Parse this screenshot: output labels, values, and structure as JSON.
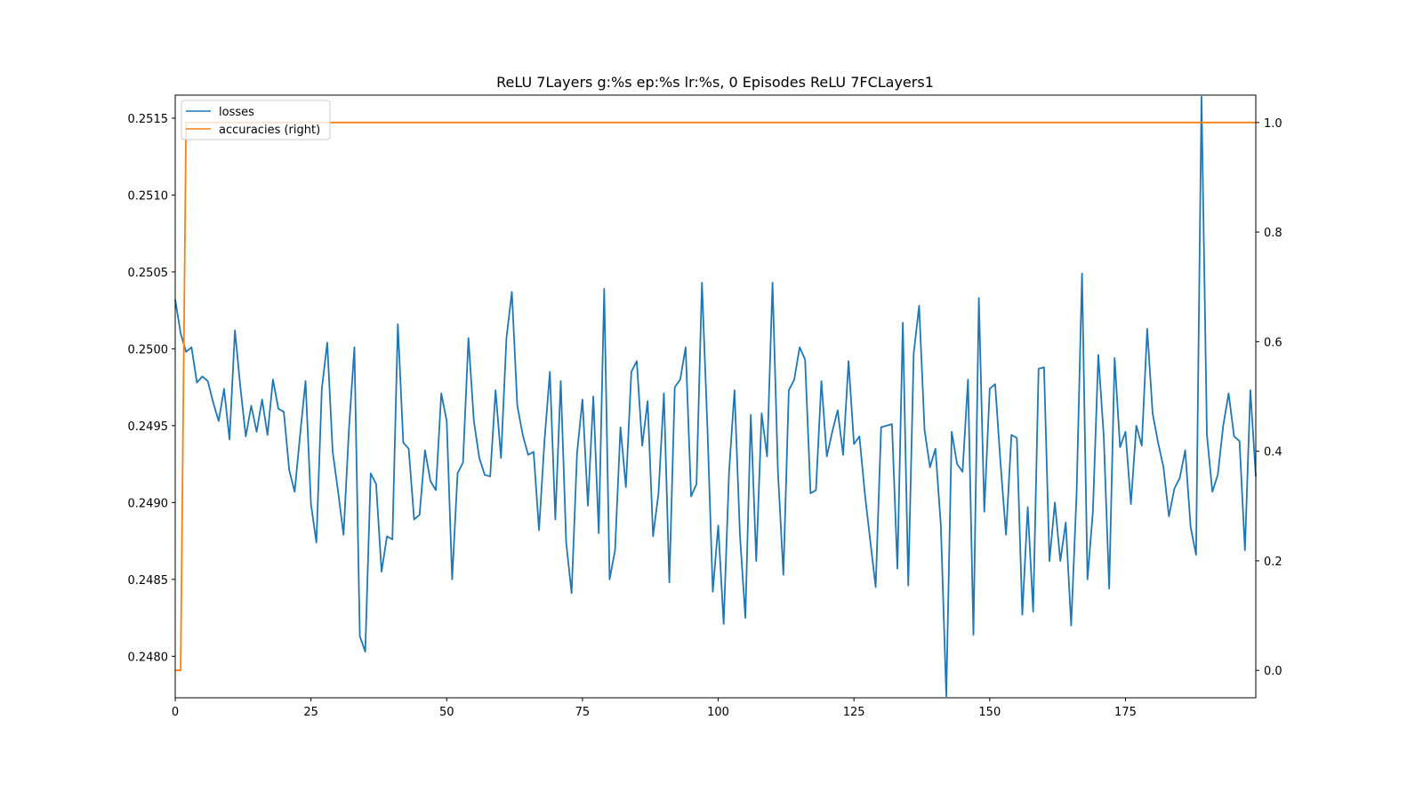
{
  "chart_data": {
    "type": "line",
    "title": "ReLU 7Layers g:%s ep:%s lr:%s, 0 Episodes ReLU 7FCLayers1",
    "xlabel": "",
    "ylabel": "",
    "xlim": [
      0,
      199
    ],
    "ylim_left": [
      0.24773,
      0.25165
    ],
    "ylim_right": [
      -0.05,
      1.05
    ],
    "x_ticks": [
      0,
      25,
      50,
      75,
      100,
      125,
      150,
      175
    ],
    "y_left_ticks": [
      0.248,
      0.2485,
      0.249,
      0.2495,
      0.25,
      0.2505,
      0.251,
      0.2515
    ],
    "y_right_ticks": [
      0.0,
      0.2,
      0.4,
      0.6,
      0.8,
      1.0
    ],
    "grid": false,
    "legend": {
      "position": "top-left",
      "entries": [
        "losses",
        "accuracies (right)"
      ]
    },
    "colors": {
      "losses": "#1f77b4",
      "accuracies": "#ff7f0e"
    },
    "series": [
      {
        "name": "losses",
        "axis": "left",
        "values": [
          0.25032,
          0.2501,
          0.24998,
          0.25001,
          0.24978,
          0.24982,
          0.24979,
          0.24965,
          0.24953,
          0.24974,
          0.24941,
          0.25012,
          0.24975,
          0.24943,
          0.24963,
          0.24946,
          0.24967,
          0.24944,
          0.2498,
          0.24961,
          0.24959,
          0.24921,
          0.24907,
          0.24944,
          0.24979,
          0.24899,
          0.24874,
          0.24974,
          0.25004,
          0.24933,
          0.24907,
          0.24879,
          0.24948,
          0.25001,
          0.24813,
          0.24803,
          0.24919,
          0.24912,
          0.24855,
          0.24878,
          0.24876,
          0.25016,
          0.24939,
          0.24935,
          0.24889,
          0.24892,
          0.24934,
          0.24914,
          0.24908,
          0.24971,
          0.24953,
          0.2485,
          0.24919,
          0.24926,
          0.25007,
          0.24953,
          0.24929,
          0.24918,
          0.24917,
          0.24973,
          0.24929,
          0.25007,
          0.25037,
          0.24963,
          0.24944,
          0.24931,
          0.24933,
          0.24882,
          0.2494,
          0.24985,
          0.24889,
          0.24979,
          0.24874,
          0.24841,
          0.24932,
          0.24967,
          0.24898,
          0.24969,
          0.2488,
          0.25039,
          0.2485,
          0.24869,
          0.24949,
          0.2491,
          0.24985,
          0.24992,
          0.24937,
          0.24966,
          0.24878,
          0.24906,
          0.24971,
          0.24848,
          0.24975,
          0.2498,
          0.25001,
          0.24904,
          0.24912,
          0.25043,
          0.2495,
          0.24842,
          0.24885,
          0.24821,
          0.2492,
          0.24973,
          0.24879,
          0.24825,
          0.24957,
          0.24862,
          0.24958,
          0.2493,
          0.25043,
          0.2492,
          0.24853,
          0.24973,
          0.2498,
          0.25001,
          0.24993,
          0.24906,
          0.24908,
          0.24979,
          0.2493,
          0.24946,
          0.2496,
          0.24931,
          0.24992,
          0.24938,
          0.24943,
          0.24906,
          0.24875,
          0.24845,
          0.24949,
          0.2495,
          0.24951,
          0.24857,
          0.25017,
          0.24846,
          0.24997,
          0.25028,
          0.24947,
          0.24923,
          0.24935,
          0.24885,
          0.24774,
          0.24946,
          0.24925,
          0.2492,
          0.2498,
          0.24814,
          0.25033,
          0.24894,
          0.24974,
          0.24977,
          0.24925,
          0.24879,
          0.24944,
          0.24942,
          0.24827,
          0.24897,
          0.24829,
          0.24987,
          0.24988,
          0.24862,
          0.249,
          0.24862,
          0.24887,
          0.2482,
          0.24906,
          0.25049,
          0.2485,
          0.24894,
          0.24996,
          0.24943,
          0.24844,
          0.24994,
          0.24936,
          0.24946,
          0.24899,
          0.2495,
          0.24937,
          0.25013,
          0.24958,
          0.24939,
          0.24923,
          0.24891,
          0.24909,
          0.24916,
          0.24934,
          0.24884,
          0.24866,
          0.25164,
          0.24944,
          0.24907,
          0.24918,
          0.2495,
          0.24971,
          0.24943,
          0.2494,
          0.24869,
          0.24973,
          0.24917
        ]
      },
      {
        "name": "accuracies (right)",
        "axis": "right",
        "points": [
          [
            0,
            0.0
          ],
          [
            1,
            0.0
          ],
          [
            2,
            1.0
          ],
          [
            199,
            1.0
          ]
        ]
      }
    ]
  }
}
